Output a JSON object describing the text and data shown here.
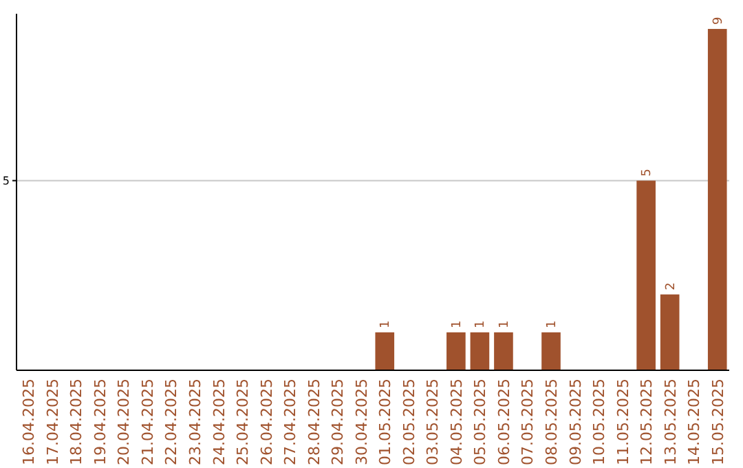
{
  "chart_data": {
    "type": "bar",
    "categories": [
      "16.04.2025",
      "17.04.2025",
      "18.04.2025",
      "19.04.2025",
      "20.04.2025",
      "21.04.2025",
      "22.04.2025",
      "23.04.2025",
      "24.04.2025",
      "25.04.2025",
      "26.04.2025",
      "27.04.2025",
      "28.04.2025",
      "29.04.2025",
      "30.04.2025",
      "01.05.2025",
      "02.05.2025",
      "03.05.2025",
      "04.05.2025",
      "05.05.2025",
      "06.05.2025",
      "07.05.2025",
      "08.05.2025",
      "09.05.2025",
      "10.05.2025",
      "11.05.2025",
      "12.05.2025",
      "13.05.2025",
      "14.05.2025",
      "15.05.2025"
    ],
    "values": [
      null,
      null,
      null,
      null,
      null,
      null,
      null,
      null,
      null,
      null,
      null,
      null,
      null,
      null,
      null,
      1,
      null,
      null,
      1,
      1,
      1,
      null,
      1,
      null,
      null,
      null,
      5,
      2,
      null,
      9
    ],
    "data_labels": true,
    "color": "#a0522d",
    "ylim": [
      0,
      9.4
    ],
    "yticks": [
      5
    ],
    "grid": "y"
  }
}
